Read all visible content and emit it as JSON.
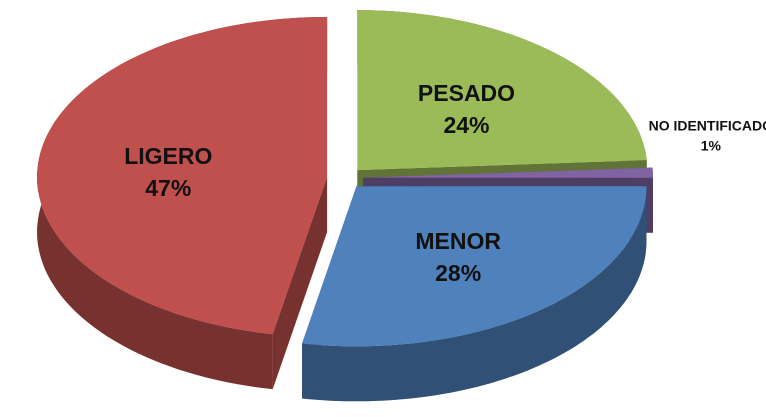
{
  "chart_data": {
    "type": "pie",
    "categories": [
      "PESADO",
      "NO IDENTIFICADO",
      "MENOR",
      "LIGERO"
    ],
    "values": [
      24,
      1,
      28,
      47
    ],
    "value_labels": [
      "24%",
      "1%",
      "28%",
      "47%"
    ],
    "colors": [
      "#9bbb59",
      "#8064a2",
      "#4f81bd",
      "#c0504d"
    ]
  }
}
